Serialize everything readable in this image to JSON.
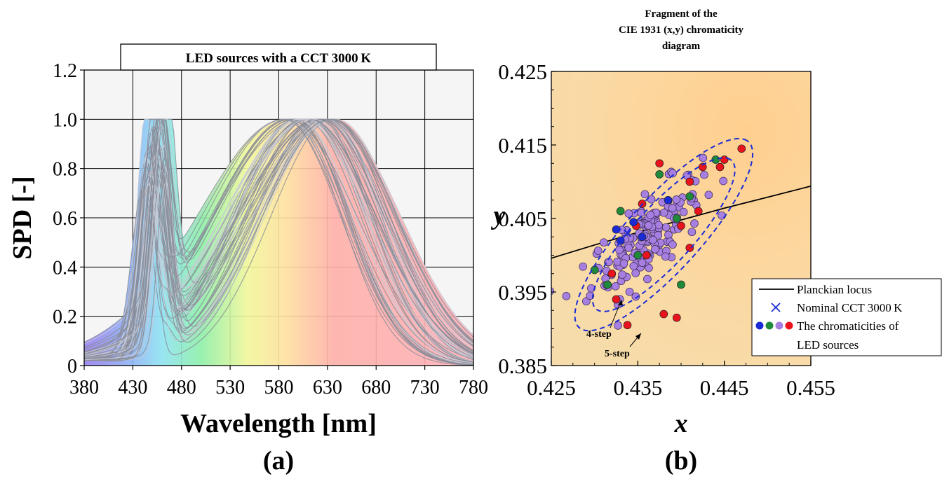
{
  "panel_a": {
    "label": "(a)",
    "title_box": "LED sources with a CCT 3000 K"
  },
  "panel_b": {
    "label": "(b)",
    "title_lines": [
      "Fragment of the",
      "CIE 1931 (x,y) chromaticity",
      "diagram"
    ],
    "annotations": {
      "four_step": "4-step",
      "five_step": "5-step"
    },
    "legend": [
      {
        "marker": "line",
        "label": "Planckian locus"
      },
      {
        "marker": "cross",
        "label": "Nominal CCT 3000 K"
      },
      {
        "marker": "dots",
        "label": "The chromaticities of"
      },
      {
        "marker": "none",
        "label": "LED sources"
      }
    ]
  },
  "colors": {
    "spd_line": "#8a8d99",
    "spd_line_light": "#c8cad6",
    "plot_bg": "#f5f5f5",
    "ellipse": "#1a2bd6",
    "locus": "#000000",
    "dot_purple": "#a77fe0",
    "dot_red": "#e8131c",
    "dot_green": "#1f8a3a",
    "dot_blue": "#1a2bd6",
    "chroma_bg": "#fbd49a"
  },
  "chart_data": [
    {
      "type": "line",
      "xlabel": "Wavelength [nm]",
      "ylabel": "SPD [-]",
      "xlim": [
        380,
        780
      ],
      "ylim": [
        0,
        1.2
      ],
      "xticks": [
        380,
        430,
        480,
        530,
        580,
        630,
        680,
        730,
        780
      ],
      "yticks": [
        0,
        0.2,
        0.4,
        0.6,
        0.8,
        1.0,
        1.2
      ],
      "ytick_labels": [
        "0",
        "0.2",
        "0.4",
        "0.6",
        "0.8",
        "1.0",
        "1.2"
      ],
      "grid": true,
      "series_family": {
        "count": 60,
        "blue_peak_nm": [
          440,
          465
        ],
        "blue_peak_value": [
          0.6,
          0.75
        ],
        "valley_nm": [
          478,
          492
        ],
        "valley_value": [
          0.08,
          0.28
        ],
        "phosphor_peak_nm": [
          585,
          640
        ],
        "phosphor_peak_value": 1.0
      },
      "representative_series": [
        {
          "x": [
            380,
            400,
            420,
            430,
            440,
            450,
            460,
            470,
            480,
            490,
            500,
            520,
            540,
            560,
            580,
            600,
            620,
            640,
            660,
            680,
            700,
            720,
            740,
            760,
            780
          ],
          "y": [
            0.02,
            0.02,
            0.03,
            0.2,
            0.72,
            0.55,
            0.6,
            0.3,
            0.12,
            0.12,
            0.2,
            0.45,
            0.66,
            0.82,
            0.95,
            1.0,
            0.95,
            0.75,
            0.5,
            0.3,
            0.16,
            0.08,
            0.04,
            0.02,
            0.01
          ]
        },
        {
          "x": [
            380,
            400,
            420,
            430,
            440,
            450,
            460,
            470,
            480,
            490,
            500,
            520,
            540,
            560,
            580,
            600,
            620,
            640,
            660,
            680,
            700,
            720,
            740,
            760,
            780
          ],
          "y": [
            0.02,
            0.02,
            0.03,
            0.15,
            0.6,
            0.62,
            0.68,
            0.4,
            0.2,
            0.2,
            0.28,
            0.5,
            0.7,
            0.86,
            0.98,
            0.97,
            0.85,
            0.62,
            0.38,
            0.2,
            0.1,
            0.05,
            0.02,
            0.01,
            0.0
          ]
        }
      ]
    },
    {
      "type": "scatter",
      "xlabel": "x",
      "ylabel": "y",
      "xlim": [
        0.425,
        0.455
      ],
      "ylim": [
        0.385,
        0.425
      ],
      "xticks": [
        0.425,
        0.435,
        0.445,
        0.455
      ],
      "yticks": [
        0.385,
        0.395,
        0.405,
        0.415,
        0.425
      ],
      "xtick_labels": [
        "0.425",
        "0.435",
        "0.445",
        "0.455"
      ],
      "ytick_labels": [
        "0.385",
        "0.395",
        "0.405",
        "0.415",
        "0.425"
      ],
      "planckian_locus": {
        "x": [
          0.425,
          0.43,
          0.435,
          0.44,
          0.445,
          0.45,
          0.455
        ],
        "y": [
          0.3996,
          0.4014,
          0.4031,
          0.4048,
          0.4064,
          0.4079,
          0.4094
        ]
      },
      "nominal_cct_point": {
        "x": 0.4338,
        "y": 0.403
      },
      "macadam_ellipses": [
        {
          "name": "4-step",
          "center": [
            0.438,
            0.4028
          ],
          "semi_major": 0.0128,
          "semi_minor": 0.0036,
          "angle_deg": 53
        },
        {
          "name": "5-step",
          "center": [
            0.438,
            0.4028
          ],
          "semi_major": 0.016,
          "semi_minor": 0.0045,
          "angle_deg": 53
        }
      ],
      "series": [
        {
          "name": "blue",
          "x": [
            0.433,
            0.4345,
            0.4355,
            0.4325,
            0.4385
          ],
          "y": [
            0.402,
            0.4045,
            0.4025,
            0.4035,
            0.4075
          ]
        },
        {
          "name": "green",
          "x": [
            0.43,
            0.4315,
            0.433,
            0.4375,
            0.44,
            0.4395,
            0.444,
            0.435,
            0.441
          ],
          "y": [
            0.398,
            0.396,
            0.406,
            0.411,
            0.396,
            0.405,
            0.413,
            0.4,
            0.408
          ]
        },
        {
          "name": "red",
          "x": [
            0.4325,
            0.4338,
            0.4355,
            0.438,
            0.4395,
            0.441,
            0.4425,
            0.4445,
            0.447,
            0.4348,
            0.436,
            0.44,
            0.442,
            0.432,
            0.441,
            0.4375,
            0.445
          ],
          "y": [
            0.394,
            0.3905,
            0.407,
            0.392,
            0.3915,
            0.401,
            0.412,
            0.412,
            0.4145,
            0.404,
            0.4,
            0.404,
            0.406,
            0.3975,
            0.41,
            0.4125,
            0.413
          ]
        },
        {
          "name": "purple",
          "generated": true,
          "count": 180,
          "center": [
            0.436,
            0.4025
          ],
          "spread": [
            0.0032,
            0.004
          ],
          "correlation": 0.75
        }
      ]
    }
  ]
}
